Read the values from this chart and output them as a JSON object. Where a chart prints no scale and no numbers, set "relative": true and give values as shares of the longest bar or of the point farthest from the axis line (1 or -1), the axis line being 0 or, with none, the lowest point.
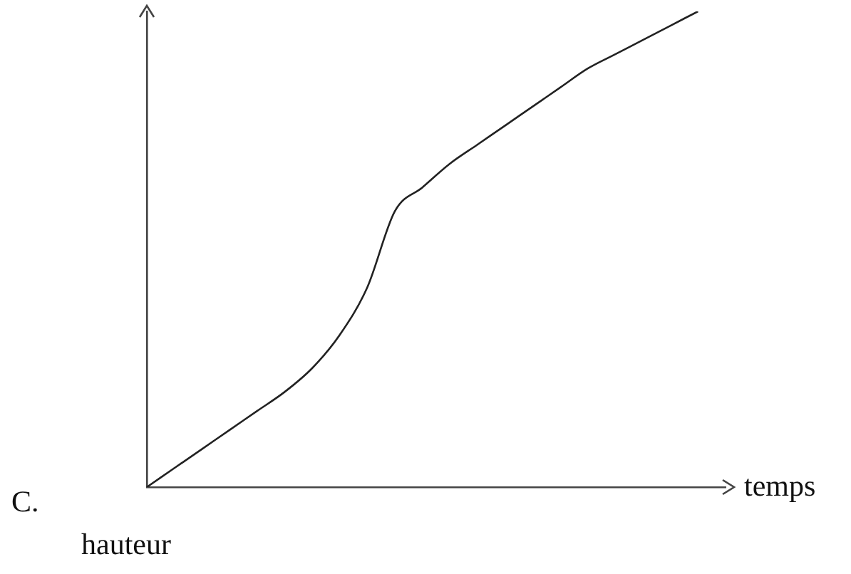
{
  "chart_data": {
    "type": "line",
    "relative": true,
    "xlabel": "temps",
    "annotations": [
      "C.",
      "hauteur"
    ],
    "categories": [
      null,
      null,
      null,
      null,
      null,
      null,
      null,
      null,
      null,
      null,
      null,
      null,
      null,
      null,
      null,
      null,
      null,
      null,
      null,
      null,
      null,
      null
    ],
    "series": [
      {
        "color": "#222222",
        "values": [
          0,
          0.04,
          0.08,
          0.12,
          0.16,
          0.2,
          0.25,
          0.32,
          0.42,
          0.58,
          0.63,
          0.68,
          0.72,
          0.76,
          0.8,
          0.84,
          0.88,
          0.91,
          0.94,
          0.97,
          1,
          null
        ]
      }
    ],
    "marker": "none",
    "grid": false,
    "legend": false
  }
}
